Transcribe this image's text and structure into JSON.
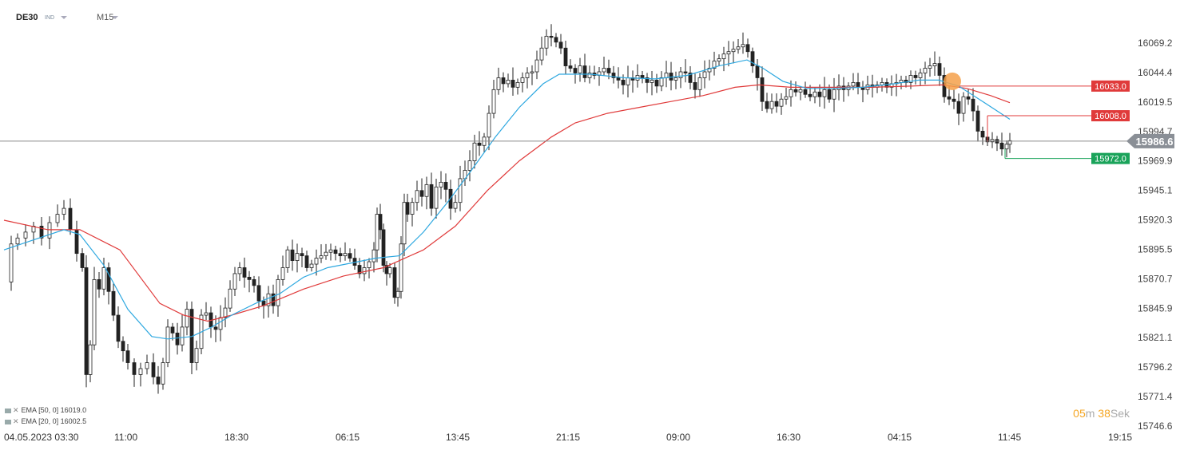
{
  "header": {
    "symbol": "DE30",
    "instrument_type": "IND",
    "timeframe": "M15"
  },
  "indicators": [
    {
      "label": "EMA",
      "params": "[50, 0]",
      "value": "16019.0",
      "color": "#e03a3a"
    },
    {
      "label": "EMA",
      "params": "[20, 0]",
      "value": "16002.5",
      "color": "#2ea8e0"
    }
  ],
  "countdown": {
    "minutes": "05",
    "m_unit": "m",
    "seconds": "38",
    "s_unit": "Sek"
  },
  "colors": {
    "candle_up": "#ffffff",
    "candle_down": "#222222",
    "ema50": "#e03a3a",
    "ema20": "#2ea8e0",
    "price_line": "#8a8a8a",
    "resistance_tag": "#e03a3a",
    "support_tag": "#1aa35a",
    "marker": "#f5a04a"
  },
  "chart_data": {
    "type": "candlestick",
    "y_ticks": [
      "16069.2",
      "16044.4",
      "16019.5",
      "15994.7",
      "15969.9",
      "15945.1",
      "15920.3",
      "15895.5",
      "15870.7",
      "15845.9",
      "15821.1",
      "15796.2",
      "15771.4",
      "15746.6"
    ],
    "ylim": [
      15746.6,
      16069.2
    ],
    "x_ticks": [
      "04.05.2023  03:30",
      "11:00",
      "18:30",
      "06:15",
      "13:45",
      "21:15",
      "09:00",
      "16:30",
      "04:15",
      "11:45",
      "19:15"
    ],
    "current_price": "15986.6",
    "levels": [
      {
        "value": "16033.0",
        "kind": "resistance",
        "line": "ema50"
      },
      {
        "value": "16008.0",
        "kind": "resistance",
        "line": "ema20"
      },
      {
        "value": "15972.0",
        "kind": "support",
        "line": "support"
      }
    ],
    "close_path": [
      [
        5,
        15868
      ],
      [
        14,
        15900
      ],
      [
        22,
        15905
      ],
      [
        32,
        15910
      ],
      [
        42,
        15915
      ],
      [
        52,
        15905
      ],
      [
        62,
        15918
      ],
      [
        72,
        15925
      ],
      [
        80,
        15930
      ],
      [
        88,
        15912
      ],
      [
        96,
        15892
      ],
      [
        103,
        15880
      ],
      [
        108,
        15790
      ],
      [
        113,
        15815
      ],
      [
        118,
        15870
      ],
      [
        124,
        15862
      ],
      [
        130,
        15880
      ],
      [
        136,
        15860
      ],
      [
        142,
        15840
      ],
      [
        148,
        15818
      ],
      [
        154,
        15810
      ],
      [
        160,
        15800
      ],
      [
        168,
        15790
      ],
      [
        176,
        15795
      ],
      [
        184,
        15800
      ],
      [
        192,
        15788
      ],
      [
        198,
        15782
      ],
      [
        204,
        15800
      ],
      [
        210,
        15830
      ],
      [
        216,
        15825
      ],
      [
        222,
        15815
      ],
      [
        228,
        15830
      ],
      [
        234,
        15845
      ],
      [
        240,
        15800
      ],
      [
        246,
        15812
      ],
      [
        252,
        15840
      ],
      [
        258,
        15842
      ],
      [
        264,
        15830
      ],
      [
        270,
        15828
      ],
      [
        276,
        15838
      ],
      [
        282,
        15846
      ],
      [
        288,
        15862
      ],
      [
        294,
        15875
      ],
      [
        300,
        15880
      ],
      [
        306,
        15872
      ],
      [
        312,
        15870
      ],
      [
        318,
        15865
      ],
      [
        324,
        15852
      ],
      [
        330,
        15848
      ],
      [
        336,
        15858
      ],
      [
        342,
        15848
      ],
      [
        348,
        15870
      ],
      [
        354,
        15880
      ],
      [
        360,
        15895
      ],
      [
        366,
        15886
      ],
      [
        372,
        15892
      ],
      [
        378,
        15890
      ],
      [
        384,
        15880
      ],
      [
        390,
        15883
      ],
      [
        396,
        15888
      ],
      [
        402,
        15890
      ],
      [
        408,
        15893
      ],
      [
        414,
        15895
      ],
      [
        420,
        15892
      ],
      [
        426,
        15890
      ],
      [
        432,
        15892
      ],
      [
        438,
        15888
      ],
      [
        444,
        15882
      ],
      [
        450,
        15875
      ],
      [
        456,
        15880
      ],
      [
        462,
        15885
      ],
      [
        468,
        15895
      ],
      [
        472,
        15925
      ],
      [
        476,
        15912
      ],
      [
        480,
        15882
      ],
      [
        484,
        15875
      ],
      [
        488,
        15880
      ],
      [
        494,
        15855
      ],
      [
        498,
        15860
      ],
      [
        502,
        15900
      ],
      [
        506,
        15935
      ],
      [
        510,
        15925
      ],
      [
        516,
        15935
      ],
      [
        522,
        15945
      ],
      [
        528,
        15940
      ],
      [
        534,
        15950
      ],
      [
        540,
        15930
      ],
      [
        546,
        15948
      ],
      [
        552,
        15952
      ],
      [
        558,
        15946
      ],
      [
        564,
        15930
      ],
      [
        570,
        15935
      ],
      [
        576,
        15955
      ],
      [
        582,
        15962
      ],
      [
        588,
        15970
      ],
      [
        594,
        15985
      ],
      [
        600,
        15983
      ],
      [
        606,
        15990
      ],
      [
        612,
        16010
      ],
      [
        618,
        16030
      ],
      [
        624,
        16040
      ],
      [
        630,
        16035
      ],
      [
        636,
        16038
      ],
      [
        642,
        16032
      ],
      [
        648,
        16036
      ],
      [
        654,
        16040
      ],
      [
        660,
        16044
      ],
      [
        666,
        16045
      ],
      [
        672,
        16055
      ],
      [
        678,
        16065
      ],
      [
        684,
        16075
      ],
      [
        690,
        16074
      ],
      [
        696,
        16070
      ],
      [
        702,
        16065
      ],
      [
        708,
        16050
      ],
      [
        714,
        16048
      ],
      [
        720,
        16044
      ],
      [
        726,
        16050
      ],
      [
        732,
        16040
      ],
      [
        738,
        16044
      ],
      [
        744,
        16042
      ],
      [
        750,
        16045
      ],
      [
        756,
        16048
      ],
      [
        762,
        16044
      ],
      [
        768,
        16040
      ],
      [
        774,
        16038
      ],
      [
        780,
        16034
      ],
      [
        786,
        16040
      ],
      [
        792,
        16038
      ],
      [
        798,
        16042
      ],
      [
        804,
        16040
      ],
      [
        810,
        16036
      ],
      [
        816,
        16038
      ],
      [
        822,
        16033
      ],
      [
        828,
        16040
      ],
      [
        834,
        16044
      ],
      [
        840,
        16038
      ],
      [
        846,
        16040
      ],
      [
        852,
        16045
      ],
      [
        858,
        16044
      ],
      [
        864,
        16036
      ],
      [
        870,
        16030
      ],
      [
        876,
        16040
      ],
      [
        882,
        16045
      ],
      [
        888,
        16048
      ],
      [
        894,
        16054
      ],
      [
        900,
        16056
      ],
      [
        906,
        16060
      ],
      [
        912,
        16062
      ],
      [
        918,
        16064
      ],
      [
        924,
        16066
      ],
      [
        930,
        16068
      ],
      [
        936,
        16062
      ],
      [
        942,
        16050
      ],
      [
        948,
        16040
      ],
      [
        954,
        16020
      ],
      [
        960,
        16014
      ],
      [
        966,
        16020
      ],
      [
        972,
        16016
      ],
      [
        978,
        16022
      ],
      [
        984,
        16024
      ],
      [
        990,
        16030
      ],
      [
        996,
        16028
      ],
      [
        1002,
        16030
      ],
      [
        1008,
        16026
      ],
      [
        1014,
        16024
      ],
      [
        1020,
        16028
      ],
      [
        1026,
        16024
      ],
      [
        1032,
        16030
      ],
      [
        1038,
        16022
      ],
      [
        1044,
        16030
      ],
      [
        1050,
        16033
      ],
      [
        1056,
        16030
      ],
      [
        1062,
        16033
      ],
      [
        1068,
        16036
      ],
      [
        1074,
        16032
      ],
      [
        1080,
        16030
      ],
      [
        1086,
        16034
      ],
      [
        1092,
        16032
      ],
      [
        1098,
        16034
      ],
      [
        1104,
        16036
      ],
      [
        1110,
        16032
      ],
      [
        1116,
        16035
      ],
      [
        1122,
        16036
      ],
      [
        1128,
        16038
      ],
      [
        1134,
        16036
      ],
      [
        1140,
        16042
      ],
      [
        1146,
        16040
      ],
      [
        1152,
        16044
      ],
      [
        1158,
        16048
      ],
      [
        1164,
        16050
      ],
      [
        1170,
        16052
      ],
      [
        1176,
        16042
      ],
      [
        1182,
        16024
      ],
      [
        1188,
        16022
      ],
      [
        1194,
        16020
      ],
      [
        1200,
        16010
      ],
      [
        1206,
        16024
      ],
      [
        1212,
        16022
      ],
      [
        1218,
        16012
      ],
      [
        1224,
        15995
      ],
      [
        1230,
        15990
      ],
      [
        1236,
        15986
      ],
      [
        1242,
        15988
      ],
      [
        1248,
        15985
      ],
      [
        1254,
        15980
      ],
      [
        1260,
        15984
      ],
      [
        1264,
        15987
      ]
    ],
    "ema20_path": [
      [
        5,
        15895
      ],
      [
        40,
        15903
      ],
      [
        80,
        15912
      ],
      [
        100,
        15908
      ],
      [
        130,
        15882
      ],
      [
        160,
        15845
      ],
      [
        190,
        15822
      ],
      [
        210,
        15820
      ],
      [
        240,
        15822
      ],
      [
        265,
        15830
      ],
      [
        290,
        15840
      ],
      [
        320,
        15850
      ],
      [
        350,
        15858
      ],
      [
        380,
        15872
      ],
      [
        410,
        15880
      ],
      [
        440,
        15884
      ],
      [
        470,
        15888
      ],
      [
        500,
        15890
      ],
      [
        530,
        15910
      ],
      [
        560,
        15935
      ],
      [
        590,
        15962
      ],
      [
        620,
        15990
      ],
      [
        650,
        16015
      ],
      [
        680,
        16035
      ],
      [
        700,
        16043
      ],
      [
        740,
        16043
      ],
      [
        780,
        16040
      ],
      [
        820,
        16039
      ],
      [
        860,
        16042
      ],
      [
        900,
        16050
      ],
      [
        935,
        16055
      ],
      [
        955,
        16048
      ],
      [
        980,
        16037
      ],
      [
        1010,
        16031
      ],
      [
        1040,
        16031
      ],
      [
        1080,
        16032
      ],
      [
        1120,
        16035
      ],
      [
        1150,
        16038
      ],
      [
        1175,
        16038
      ],
      [
        1200,
        16033
      ],
      [
        1230,
        16020
      ],
      [
        1264,
        16005
      ]
    ],
    "ema50_path": [
      [
        5,
        15920
      ],
      [
        60,
        15912
      ],
      [
        100,
        15912
      ],
      [
        150,
        15895
      ],
      [
        200,
        15850
      ],
      [
        230,
        15840
      ],
      [
        260,
        15835
      ],
      [
        290,
        15840
      ],
      [
        330,
        15848
      ],
      [
        380,
        15862
      ],
      [
        430,
        15873
      ],
      [
        480,
        15880
      ],
      [
        530,
        15895
      ],
      [
        570,
        15915
      ],
      [
        610,
        15945
      ],
      [
        650,
        15970
      ],
      [
        690,
        15990
      ],
      [
        720,
        16002
      ],
      [
        760,
        16010
      ],
      [
        800,
        16015
      ],
      [
        840,
        16020
      ],
      [
        880,
        16025
      ],
      [
        920,
        16032
      ],
      [
        950,
        16034
      ],
      [
        990,
        16032
      ],
      [
        1040,
        16032
      ],
      [
        1090,
        16032
      ],
      [
        1140,
        16033
      ],
      [
        1180,
        16034
      ],
      [
        1210,
        16031
      ],
      [
        1240,
        16025
      ],
      [
        1264,
        16019
      ]
    ]
  }
}
